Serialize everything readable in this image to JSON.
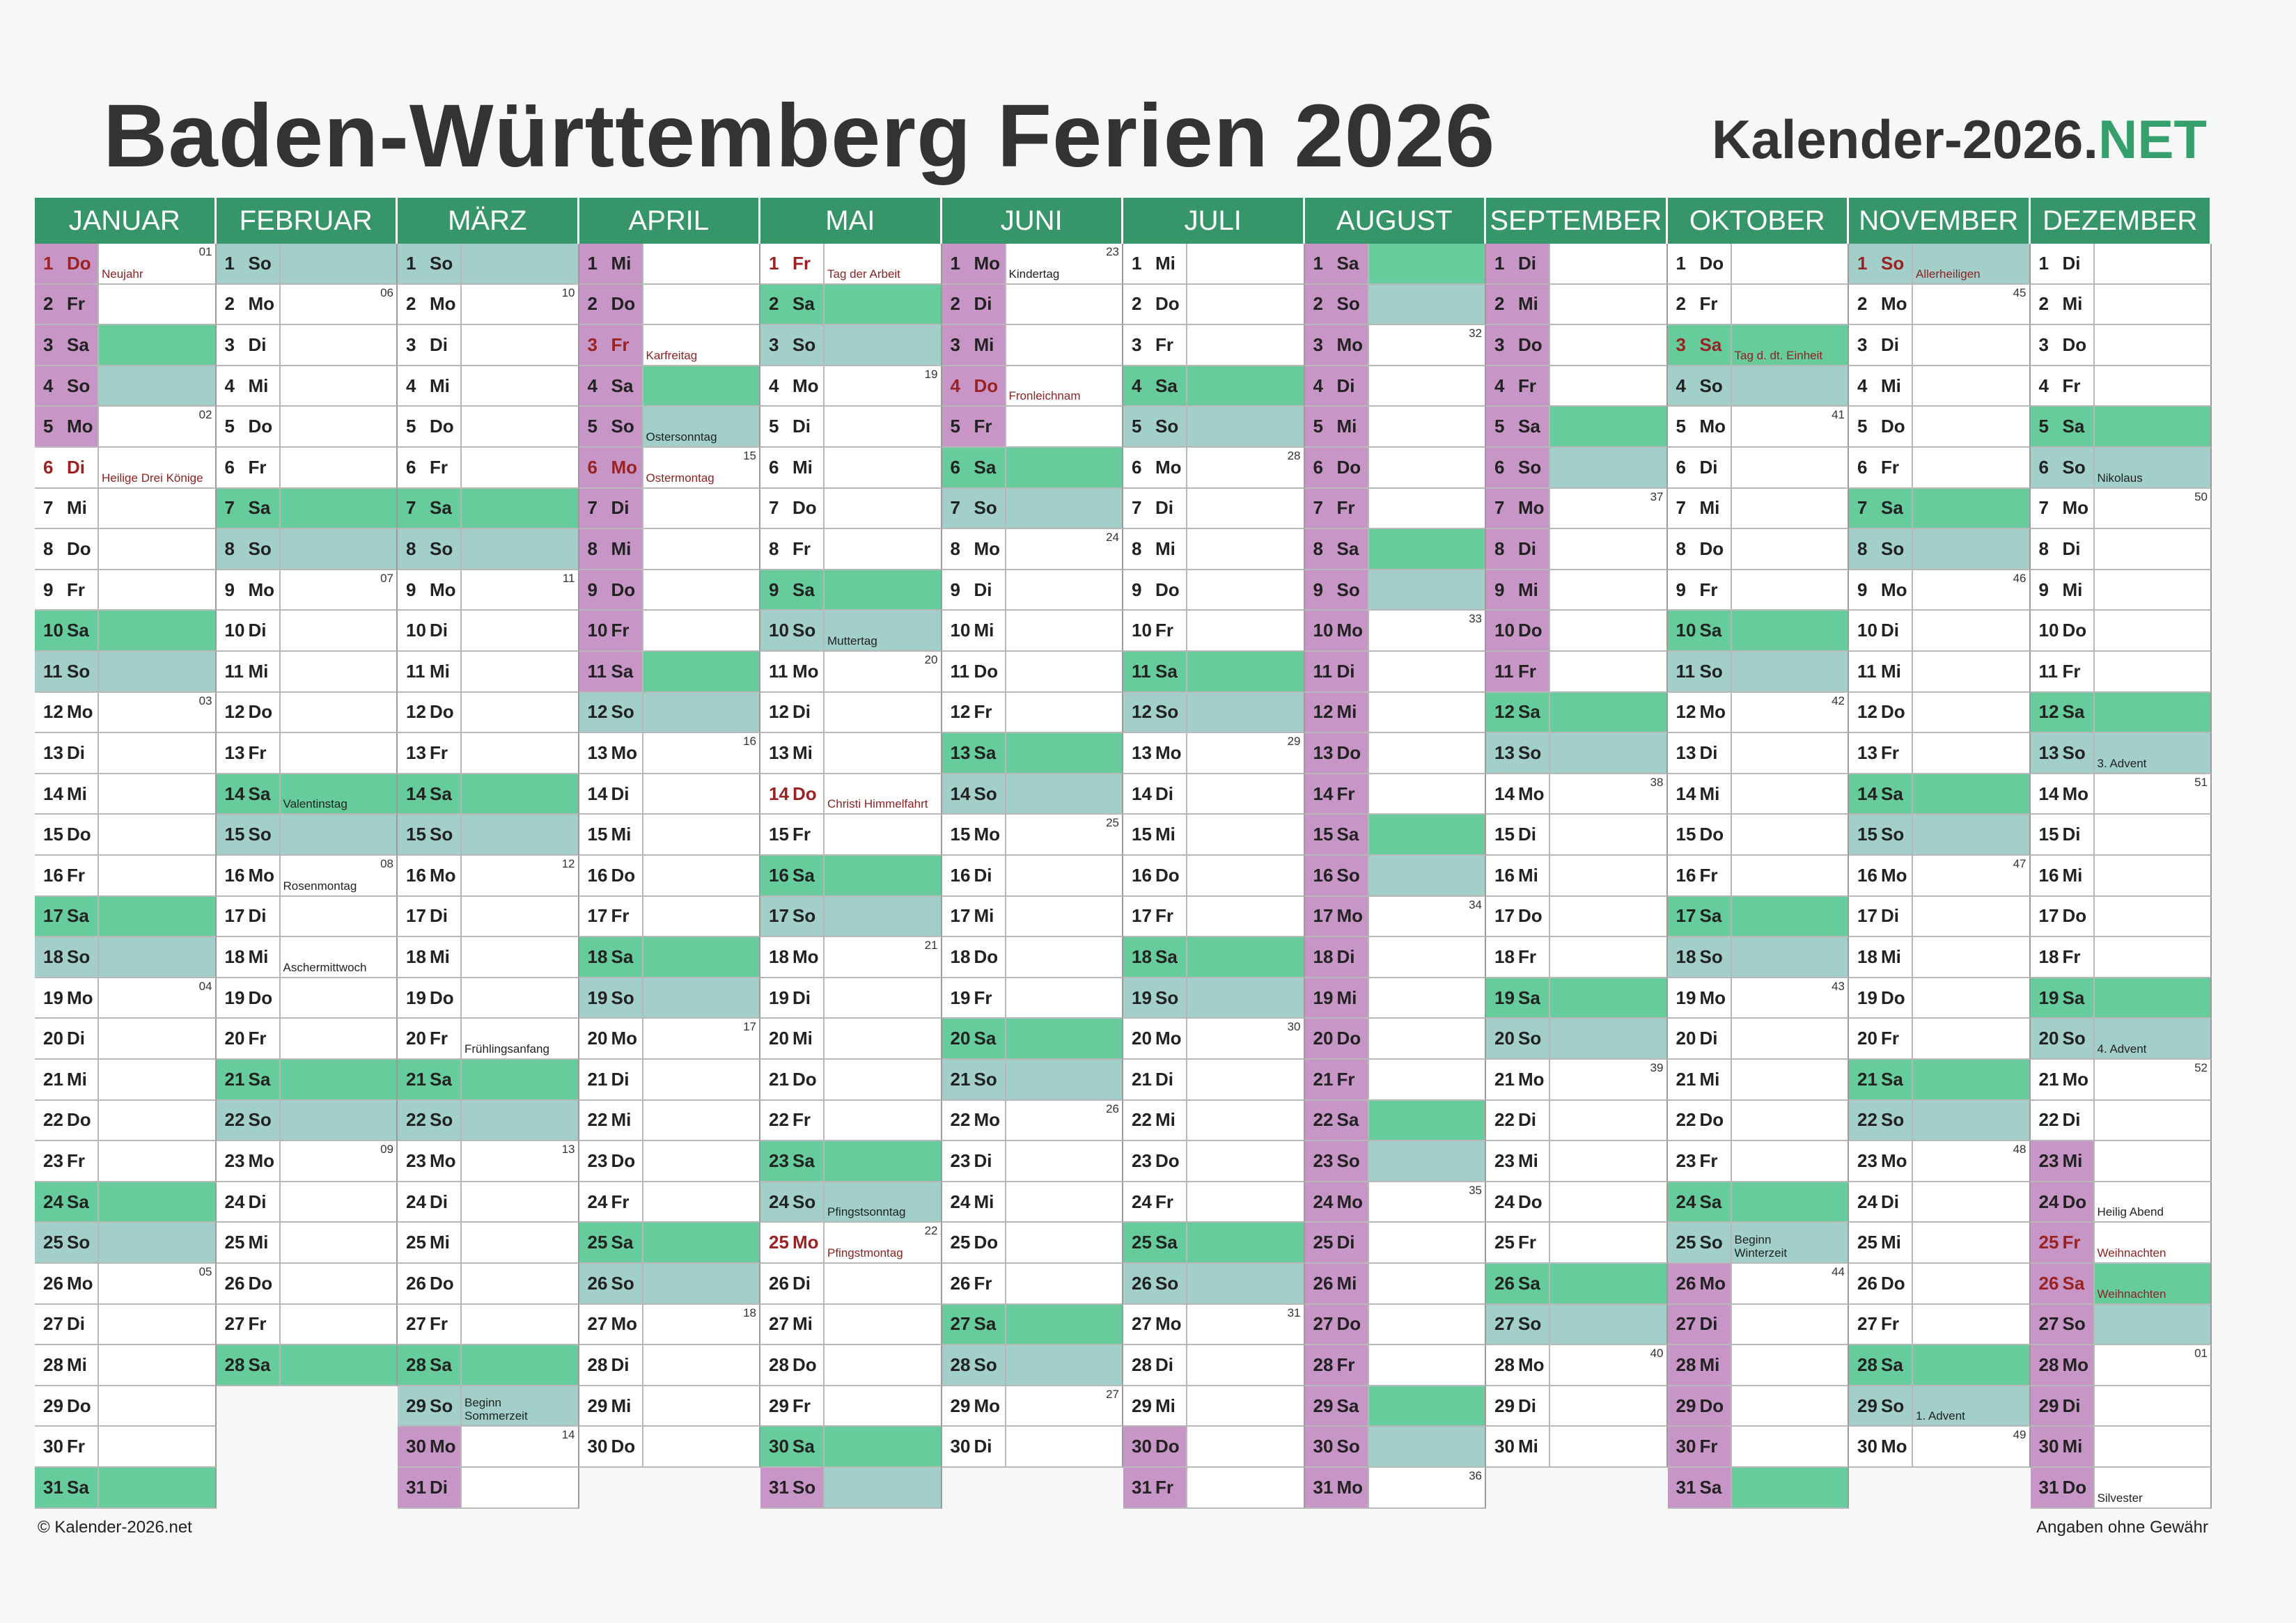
{
  "title": "Baden-Württemberg Ferien 2026",
  "brand": {
    "main": "Kalender-2026.",
    "accent": "NET"
  },
  "footer": {
    "copyright": "© Kalender-2026.net",
    "disclaimer": "Angaben ohne Gewähr"
  },
  "colors": {
    "header": "#36966a",
    "ferien": "#c796c6",
    "samstag": "#66cc9c",
    "sonntag": "#a2cfc9",
    "feiertag_text": "#9b2222"
  },
  "weekdays": [
    "Mo",
    "Di",
    "Mi",
    "Do",
    "Fr",
    "Sa",
    "So"
  ],
  "year": 2026,
  "months": [
    {
      "name": "JANUAR",
      "days": 31,
      "start": 3
    },
    {
      "name": "FEBRUAR",
      "days": 28,
      "start": 6
    },
    {
      "name": "MÄRZ",
      "days": 31,
      "start": 6
    },
    {
      "name": "APRIL",
      "days": 30,
      "start": 2
    },
    {
      "name": "MAI",
      "days": 31,
      "start": 4
    },
    {
      "name": "JUNI",
      "days": 30,
      "start": 0
    },
    {
      "name": "JULI",
      "days": 31,
      "start": 2
    },
    {
      "name": "AUGUST",
      "days": 31,
      "start": 5
    },
    {
      "name": "SEPTEMBER",
      "days": 30,
      "start": 1
    },
    {
      "name": "OKTOBER",
      "days": 31,
      "start": 3
    },
    {
      "name": "NOVEMBER",
      "days": 30,
      "start": 6
    },
    {
      "name": "DEZEMBER",
      "days": 31,
      "start": 1
    }
  ],
  "schulferien": [
    [
      1,
      2,
      3,
      4,
      5
    ],
    [],
    [
      30,
      31
    ],
    [
      1,
      2,
      3,
      4,
      5,
      6,
      7,
      8,
      9,
      10,
      11
    ],
    [
      31
    ],
    [
      1,
      2,
      3,
      4,
      5
    ],
    [
      30,
      31
    ],
    [
      1,
      2,
      3,
      4,
      5,
      6,
      7,
      8,
      9,
      10,
      11,
      12,
      13,
      14,
      15,
      16,
      17,
      18,
      19,
      20,
      21,
      22,
      23,
      24,
      25,
      26,
      27,
      28,
      29,
      30,
      31
    ],
    [
      1,
      2,
      3,
      4,
      5,
      6,
      7,
      8,
      9,
      10,
      11
    ],
    [
      26,
      27,
      28,
      29,
      30,
      31
    ],
    [],
    [
      23,
      24,
      25,
      26,
      27,
      28,
      29,
      30,
      31
    ]
  ],
  "feiertage": [
    [
      1,
      6
    ],
    [],
    [],
    [
      3,
      6
    ],
    [
      1,
      14,
      25
    ],
    [
      4
    ],
    [],
    [],
    [],
    [
      3
    ],
    [
      1
    ],
    [
      25,
      26
    ]
  ],
  "events": [
    {
      "1": "Neujahr",
      "6": "Heilige Drei Könige"
    },
    {
      "14": "Valentinstag",
      "16": "Rosenmontag",
      "18": "Aschermittwoch"
    },
    {
      "20": "Frühlingsanfang",
      "29": "Beginn\nSommerzeit"
    },
    {
      "3": "Karfreitag",
      "5": "Ostersonntag",
      "6": "Ostermontag"
    },
    {
      "1": "Tag der Arbeit",
      "10": "Muttertag",
      "14": "Christi Himmelfahrt",
      "24": "Pfingstsonntag",
      "25": "Pfingstmontag"
    },
    {
      "1": "Kindertag",
      "4": "Fronleichnam"
    },
    {},
    {},
    {},
    {
      "3": "Tag d. dt. Einheit",
      "25": "Beginn\nWinterzeit"
    },
    {
      "1": "Allerheiligen",
      "29": "1. Advent"
    },
    {
      "6": "Nikolaus",
      "13": "3. Advent",
      "20": "4. Advent",
      "24": "Heilig Abend",
      "25": "Weihnachten",
      "26": "Weihnachten",
      "31": "Silvester"
    }
  ],
  "red_events": [
    [
      "1",
      "6"
    ],
    [],
    [],
    [
      "3",
      "6"
    ],
    [
      "1",
      "14",
      "25"
    ],
    [
      "4"
    ],
    [],
    [],
    [],
    [
      "3"
    ],
    [
      "1"
    ],
    [
      "25",
      "26"
    ]
  ],
  "week_numbers": [
    {
      "1": "01",
      "5": "02",
      "12": "03",
      "19": "04",
      "26": "05"
    },
    {
      "2": "06",
      "9": "07",
      "16": "08",
      "23": "09"
    },
    {
      "2": "10",
      "9": "11",
      "16": "12",
      "23": "13",
      "30": "14"
    },
    {
      "6": "15",
      "13": "16",
      "20": "17",
      "27": "18"
    },
    {
      "4": "19",
      "11": "20",
      "18": "21",
      "25": "22"
    },
    {
      "1": "23",
      "8": "24",
      "15": "25",
      "22": "26",
      "29": "27"
    },
    {
      "6": "28",
      "13": "29",
      "20": "30",
      "27": "31"
    },
    {
      "3": "32",
      "10": "33",
      "17": "34",
      "24": "35",
      "31": "36"
    },
    {
      "7": "37",
      "14": "38",
      "21": "39",
      "28": "40"
    },
    {
      "5": "41",
      "12": "42",
      "19": "43",
      "26": "44"
    },
    {
      "2": "45",
      "9": "46",
      "16": "47",
      "23": "48",
      "30": "49"
    },
    {
      "7": "50",
      "14": "51",
      "21": "52",
      "28": "01"
    }
  ]
}
